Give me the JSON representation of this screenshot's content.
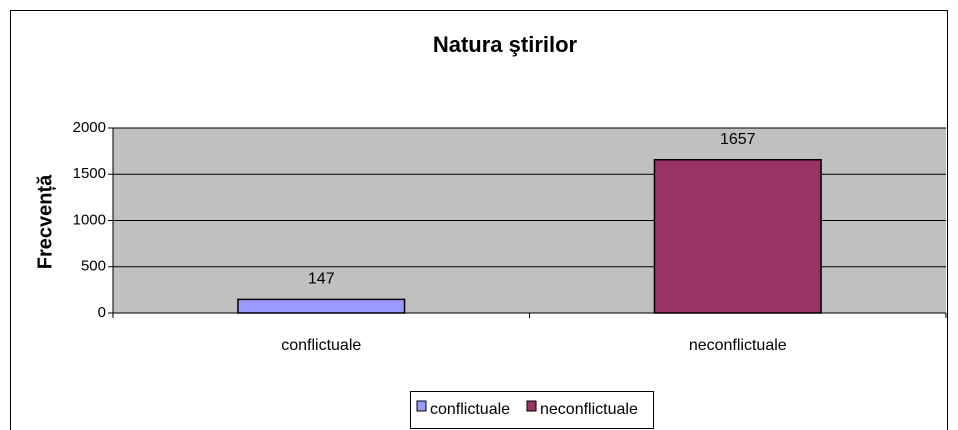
{
  "chart_data": {
    "type": "bar",
    "title": "Natura ştirilor",
    "ylabel": "Frecvență",
    "categories": [
      "conflictuale",
      "neconflictuale"
    ],
    "values": [
      147,
      1657
    ],
    "colors": [
      "#9999ff",
      "#993366"
    ],
    "ylim": [
      0,
      2000
    ],
    "yticks": [
      0,
      500,
      1000,
      1500,
      2000
    ],
    "grid": true,
    "legend": "bottom"
  }
}
